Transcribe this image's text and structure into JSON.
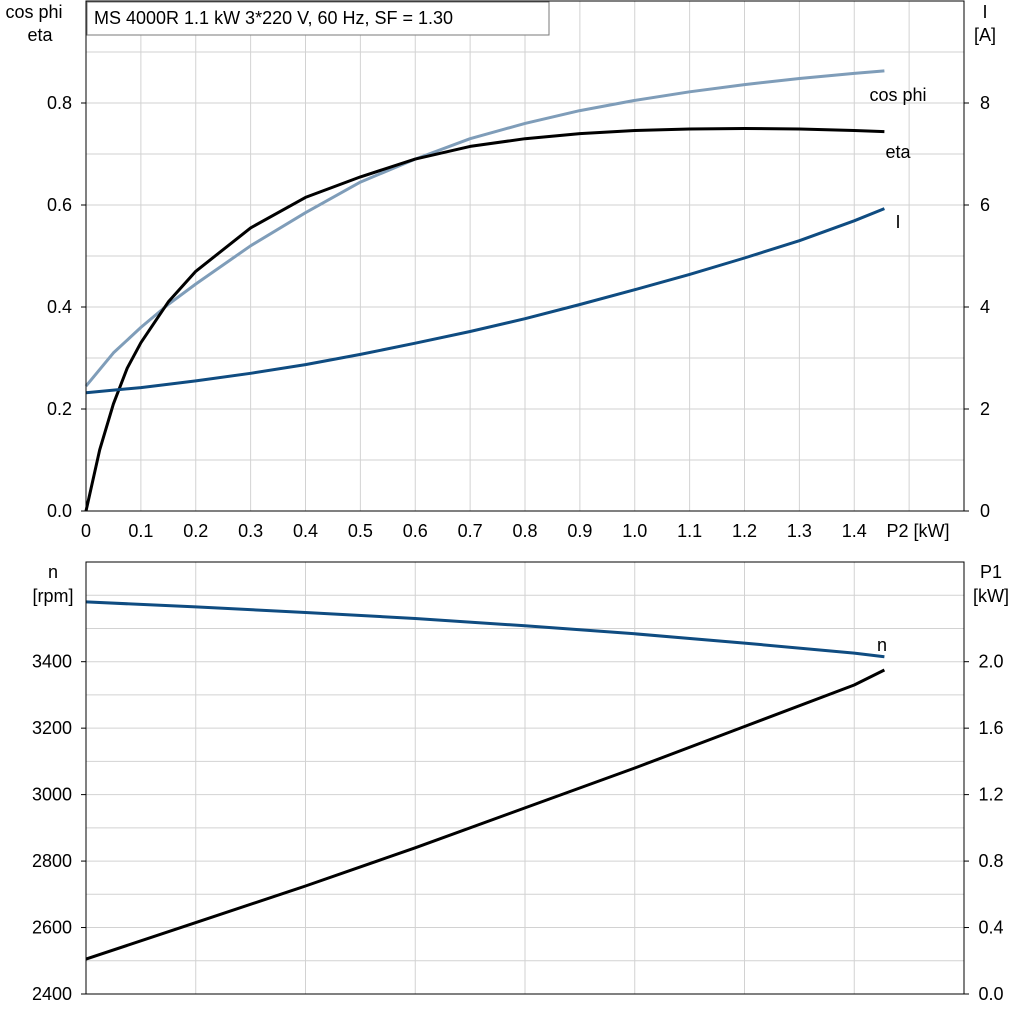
{
  "title": "MS 4000R   1.1 kW   3*220 V, 60 Hz, SF = 1.30",
  "colors": {
    "cos_phi": "#7f9db9",
    "eta": "#000000",
    "current": "#0f4c81",
    "speed": "#0f4c81",
    "p1": "#000000",
    "grid": "#d2d2d2"
  },
  "chart_data": [
    {
      "type": "line",
      "title": "MS 4000R   1.1 kW   3*220 V, 60 Hz, SF = 1.30",
      "xlabel": "P2 [kW]",
      "ylabel_left": [
        "cos phi",
        "eta"
      ],
      "ylabel_right": [
        "I",
        "[A]"
      ],
      "xlim": [
        0,
        1.6
      ],
      "ylim_left": [
        0,
        1.0
      ],
      "ylim_right": [
        0,
        10
      ],
      "x_ticks": [
        "0",
        "0.1",
        "0.2",
        "0.3",
        "0.4",
        "0.5",
        "0.6",
        "0.7",
        "0.8",
        "0.9",
        "1.0",
        "1.1",
        "1.2",
        "1.3",
        "1.4"
      ],
      "y_ticks_left": [
        "0.0",
        "0.2",
        "0.4",
        "0.6",
        "0.8"
      ],
      "y_ticks_right": [
        "0",
        "2",
        "4",
        "6",
        "8"
      ],
      "grid": true,
      "series": [
        {
          "name": "cos phi",
          "axis": "left",
          "x": [
            0,
            0.05,
            0.1,
            0.15,
            0.2,
            0.3,
            0.4,
            0.5,
            0.6,
            0.7,
            0.8,
            0.9,
            1.0,
            1.1,
            1.2,
            1.3,
            1.4,
            1.455
          ],
          "y": [
            0.245,
            0.31,
            0.36,
            0.405,
            0.445,
            0.52,
            0.585,
            0.645,
            0.69,
            0.73,
            0.76,
            0.785,
            0.805,
            0.822,
            0.836,
            0.848,
            0.858,
            0.863
          ]
        },
        {
          "name": "eta",
          "axis": "left",
          "x": [
            0,
            0.025,
            0.05,
            0.075,
            0.1,
            0.15,
            0.2,
            0.3,
            0.4,
            0.5,
            0.6,
            0.7,
            0.8,
            0.9,
            1.0,
            1.1,
            1.2,
            1.3,
            1.4,
            1.455
          ],
          "y": [
            0,
            0.12,
            0.21,
            0.28,
            0.33,
            0.41,
            0.47,
            0.555,
            0.615,
            0.655,
            0.69,
            0.715,
            0.73,
            0.74,
            0.746,
            0.749,
            0.75,
            0.749,
            0.746,
            0.744
          ]
        },
        {
          "name": "I",
          "axis": "right",
          "x": [
            0,
            0.1,
            0.2,
            0.3,
            0.4,
            0.5,
            0.6,
            0.7,
            0.8,
            0.9,
            1.0,
            1.1,
            1.2,
            1.3,
            1.4,
            1.455
          ],
          "y": [
            2.32,
            2.42,
            2.55,
            2.7,
            2.87,
            3.07,
            3.29,
            3.52,
            3.77,
            4.05,
            4.34,
            4.64,
            4.96,
            5.3,
            5.69,
            5.93
          ]
        }
      ]
    },
    {
      "type": "line",
      "xlabel": "P2 [kW]",
      "ylabel_left": [
        "n",
        "[rpm]"
      ],
      "ylabel_right": [
        "P1",
        "[kW]"
      ],
      "xlim": [
        0,
        1.6
      ],
      "ylim_left": [
        2400,
        3700
      ],
      "ylim_right": [
        0,
        2.6
      ],
      "y_ticks_left": [
        "2400",
        "2600",
        "2800",
        "3000",
        "3200",
        "3400"
      ],
      "y_ticks_right": [
        "0.0",
        "0.4",
        "0.8",
        "1.2",
        "1.6",
        "2.0"
      ],
      "grid": true,
      "series": [
        {
          "name": "n",
          "axis": "left",
          "x": [
            0,
            0.2,
            0.4,
            0.6,
            0.8,
            1.0,
            1.2,
            1.4,
            1.455
          ],
          "y": [
            3580,
            3565,
            3548,
            3530,
            3508,
            3484,
            3456,
            3426,
            3415
          ]
        },
        {
          "axis": "right",
          "x": [
            0,
            0.2,
            0.4,
            0.6,
            0.8,
            1.0,
            1.2,
            1.4,
            1.455
          ],
          "y": [
            0.21,
            0.43,
            0.65,
            0.88,
            1.12,
            1.36,
            1.61,
            1.86,
            1.95
          ]
        }
      ]
    }
  ]
}
